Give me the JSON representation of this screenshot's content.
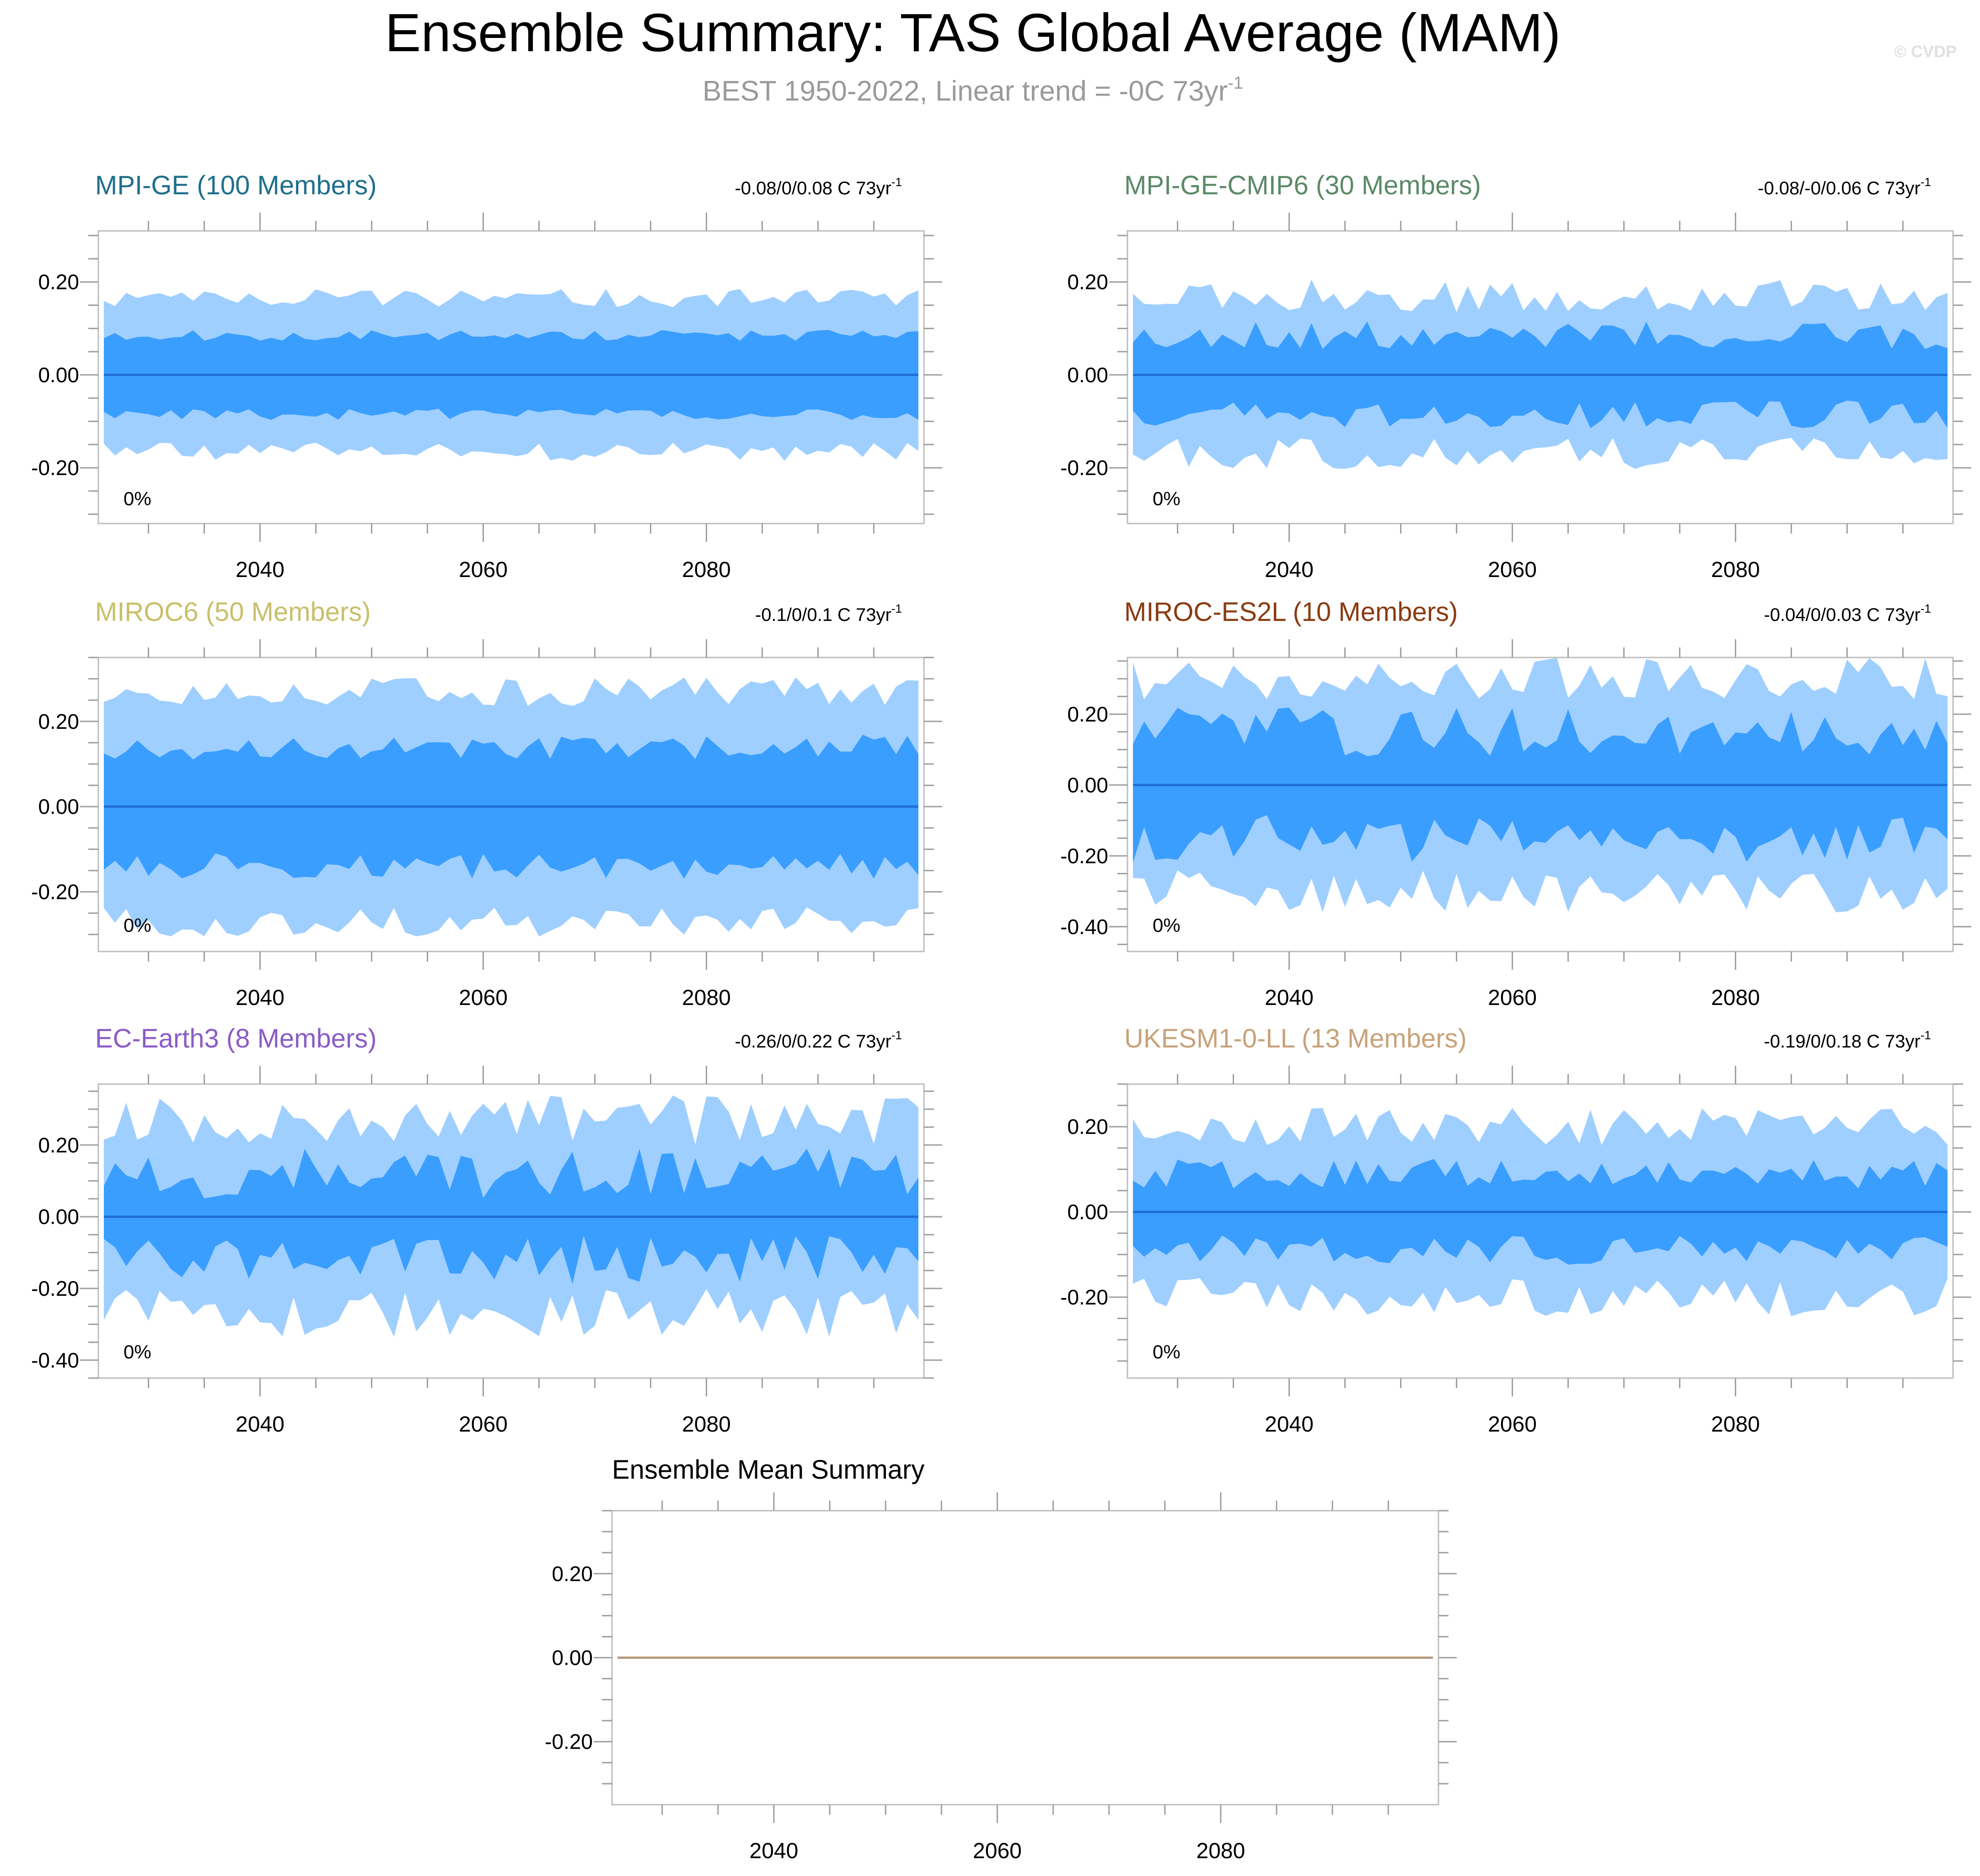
{
  "figure": {
    "title": "Ensemble Summary: TAS Global Average (MAM)",
    "subtitle_main": "BEST 1950-2022, Linear trend = -0C 73yr",
    "subtitle_sup": "-1",
    "watermark": "© CVDP"
  },
  "chart_data": [
    {
      "type": "area",
      "title": "MPI-GE (100 Members)",
      "title_color": "#1f6f8b",
      "trend_text": "-0.08/0/0.08 C 73yr",
      "trend_sup": "-1",
      "percent_label": "0%",
      "x_range": [
        2026,
        2099
      ],
      "ylim": [
        -0.32,
        0.31
      ],
      "yticks": [
        0.2,
        0.0,
        -0.2
      ],
      "ytick_labels": [
        "0.20",
        "0.00",
        "-0.20"
      ],
      "xticks": [
        2040,
        2060,
        2080
      ],
      "xtick_labels": [
        "2040",
        "2060",
        "2080"
      ],
      "ensemble_mean": 0.0,
      "spread": {
        "inner_mean": 0.085,
        "inner_jitter": 0.012,
        "outer_mean": 0.165,
        "outer_jitter": 0.02,
        "seed": 11
      }
    },
    {
      "type": "area",
      "title": "MPI-GE-CMIP6 (30 Members)",
      "title_color": "#5b8a68",
      "trend_text": "-0.08/-0/0.06 C 73yr",
      "trend_sup": "-1",
      "percent_label": "0%",
      "x_range": [
        2026,
        2099
      ],
      "ylim": [
        -0.32,
        0.31
      ],
      "yticks": [
        0.2,
        0.0,
        -0.2
      ],
      "ytick_labels": [
        "0.20",
        "0.00",
        "-0.20"
      ],
      "xticks": [
        2040,
        2060,
        2080
      ],
      "xtick_labels": [
        "2040",
        "2060",
        "2080"
      ],
      "ensemble_mean": 0.0,
      "spread": {
        "inner_mean": 0.085,
        "inner_jitter": 0.03,
        "outer_mean": 0.17,
        "outer_jitter": 0.035,
        "seed": 23
      }
    },
    {
      "type": "area",
      "title": "MIROC6 (50 Members)",
      "title_color": "#c9bf6a",
      "trend_text": "-0.1/0/0.1 C 73yr",
      "trend_sup": "-1",
      "percent_label": "0%",
      "x_range": [
        2026,
        2099
      ],
      "ylim": [
        -0.34,
        0.35
      ],
      "yticks": [
        0.2,
        0.0,
        -0.2
      ],
      "ytick_labels": [
        "0.20",
        "0.00",
        "-0.20"
      ],
      "xticks": [
        2040,
        2060,
        2080
      ],
      "xtick_labels": [
        "2040",
        "2060",
        "2080"
      ],
      "ensemble_mean": 0.0,
      "spread": {
        "inner_mean": 0.14,
        "inner_jitter": 0.03,
        "outer_mean": 0.27,
        "outer_jitter": 0.035,
        "seed": 37
      }
    },
    {
      "type": "area",
      "title": "MIROC-ES2L (10 Members)",
      "title_color": "#8a3b12",
      "trend_text": "-0.04/0/0.03 C 73yr",
      "trend_sup": "-1",
      "percent_label": "0%",
      "x_range": [
        2026,
        2099
      ],
      "ylim": [
        -0.47,
        0.36
      ],
      "yticks": [
        0.2,
        0.0,
        -0.2,
        -0.4
      ],
      "ytick_labels": [
        "0.20",
        "0.00",
        "-0.20",
        "-0.40"
      ],
      "xticks": [
        2040,
        2060,
        2080
      ],
      "xtick_labels": [
        "2040",
        "2060",
        "2080"
      ],
      "ensemble_mean": 0.0,
      "spread": {
        "inner_mean": 0.15,
        "inner_jitter": 0.07,
        "outer_mean": 0.3,
        "outer_jitter": 0.06,
        "seed": 41
      }
    },
    {
      "type": "area",
      "title": "EC-Earth3 (8 Members)",
      "title_color": "#8a5cc7",
      "trend_text": "-0.26/0/0.22 C 73yr",
      "trend_sup": "-1",
      "percent_label": "0%",
      "x_range": [
        2026,
        2099
      ],
      "ylim": [
        -0.45,
        0.37
      ],
      "yticks": [
        0.2,
        0.0,
        -0.2,
        -0.4
      ],
      "ytick_labels": [
        "0.20",
        "0.00",
        "-0.20",
        "-0.40"
      ],
      "xticks": [
        2040,
        2060,
        2080
      ],
      "xtick_labels": [
        "2040",
        "2060",
        "2080"
      ],
      "ensemble_mean": 0.0,
      "spread": {
        "inner_mean": 0.12,
        "inner_jitter": 0.07,
        "outer_mean": 0.27,
        "outer_jitter": 0.07,
        "seed": 53
      }
    },
    {
      "type": "area",
      "title": "UKESM1-0-LL (13 Members)",
      "title_color": "#c8a27a",
      "trend_text": "-0.19/0/0.18 C 73yr",
      "trend_sup": "-1",
      "percent_label": "0%",
      "x_range": [
        2026,
        2099
      ],
      "ylim": [
        -0.39,
        0.3
      ],
      "yticks": [
        0.2,
        0.0,
        -0.2
      ],
      "ytick_labels": [
        "0.20",
        "0.00",
        "-0.20"
      ],
      "xticks": [
        2040,
        2060,
        2080
      ],
      "xtick_labels": [
        "2040",
        "2060",
        "2080"
      ],
      "ensemble_mean": 0.0,
      "spread": {
        "inner_mean": 0.09,
        "inner_jitter": 0.035,
        "outer_mean": 0.2,
        "outer_jitter": 0.045,
        "seed": 67
      }
    },
    {
      "type": "line",
      "title": "Ensemble Mean Summary",
      "x_range": [
        2026,
        2099
      ],
      "ylim": [
        -0.35,
        0.35
      ],
      "yticks": [
        0.2,
        0.0,
        -0.2
      ],
      "ytick_labels": [
        "0.20",
        "0.00",
        "-0.20"
      ],
      "xticks": [
        2040,
        2060,
        2080
      ],
      "xtick_labels": [
        "2040",
        "2060",
        "2080"
      ],
      "series": [
        {
          "name": "ensemble mean",
          "value": 0.0,
          "color": "#b59a7a"
        }
      ]
    }
  ]
}
